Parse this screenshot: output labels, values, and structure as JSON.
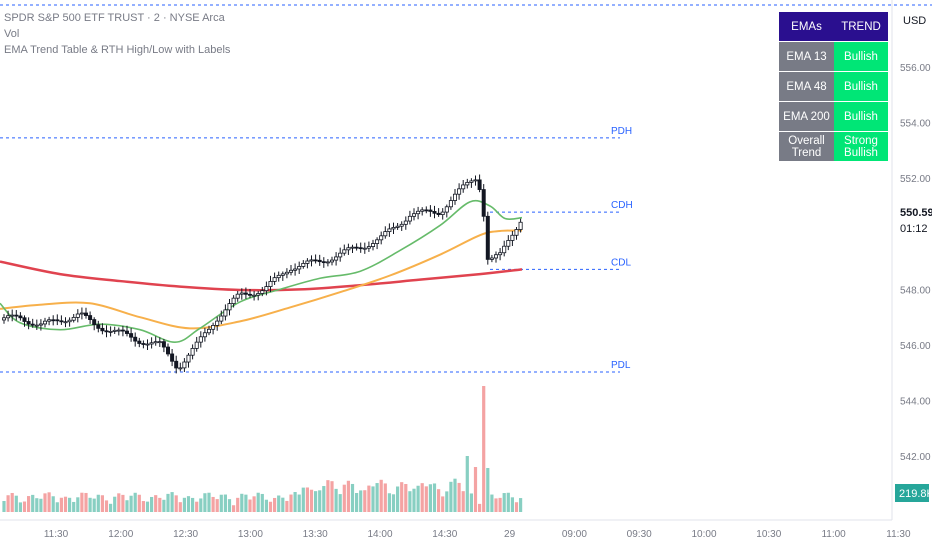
{
  "legend": {
    "title": "SPDR S&P 500 ETF TRUST · 2 · NYSE Arca",
    "vol": "Vol",
    "indicator": "EMA Trend Table & RTH High/Low with Labels"
  },
  "currency": "USD",
  "trend_table": {
    "headers": [
      "EMAs",
      "TREND"
    ],
    "rows": [
      {
        "label": "EMA 13",
        "value": "Bullish"
      },
      {
        "label": "EMA 48",
        "value": "Bullish"
      },
      {
        "label": "EMA 200",
        "value": "Bullish"
      },
      {
        "label": "Overall Trend",
        "value": "Strong Bullish"
      }
    ]
  },
  "levels": [
    {
      "name": "PDH",
      "price": 553.45
    },
    {
      "name": "CDH",
      "price": 550.78
    },
    {
      "name": "CDL",
      "price": 548.72
    },
    {
      "name": "PDL",
      "price": 545.03
    }
  ],
  "price_scale": {
    "ticks": [
      "556.00",
      "554.00",
      "552.00",
      "548.00",
      "546.00",
      "544.00",
      "542.00"
    ],
    "last_price": "550.59",
    "countdown": "01:12",
    "volume_label": "219.8K"
  },
  "time_axis": [
    "11:30",
    "12:00",
    "12:30",
    "13:00",
    "13:30",
    "14:00",
    "14:30",
    "29",
    "09:00",
    "09:30",
    "10:00",
    "10:30",
    "11:00",
    "11:30"
  ],
  "colors": {
    "ema13": "#66bb6a",
    "ema48": "#f7b04b",
    "ema200": "#e0434f",
    "levels": "#2962ff",
    "vol_up": "#88cfc2",
    "vol_down": "#f4a3a3",
    "table_header": "#2a0f8f",
    "table_label": "#787b86",
    "table_bullish": "#00e676",
    "volume_badge": "#26a69a"
  }
}
